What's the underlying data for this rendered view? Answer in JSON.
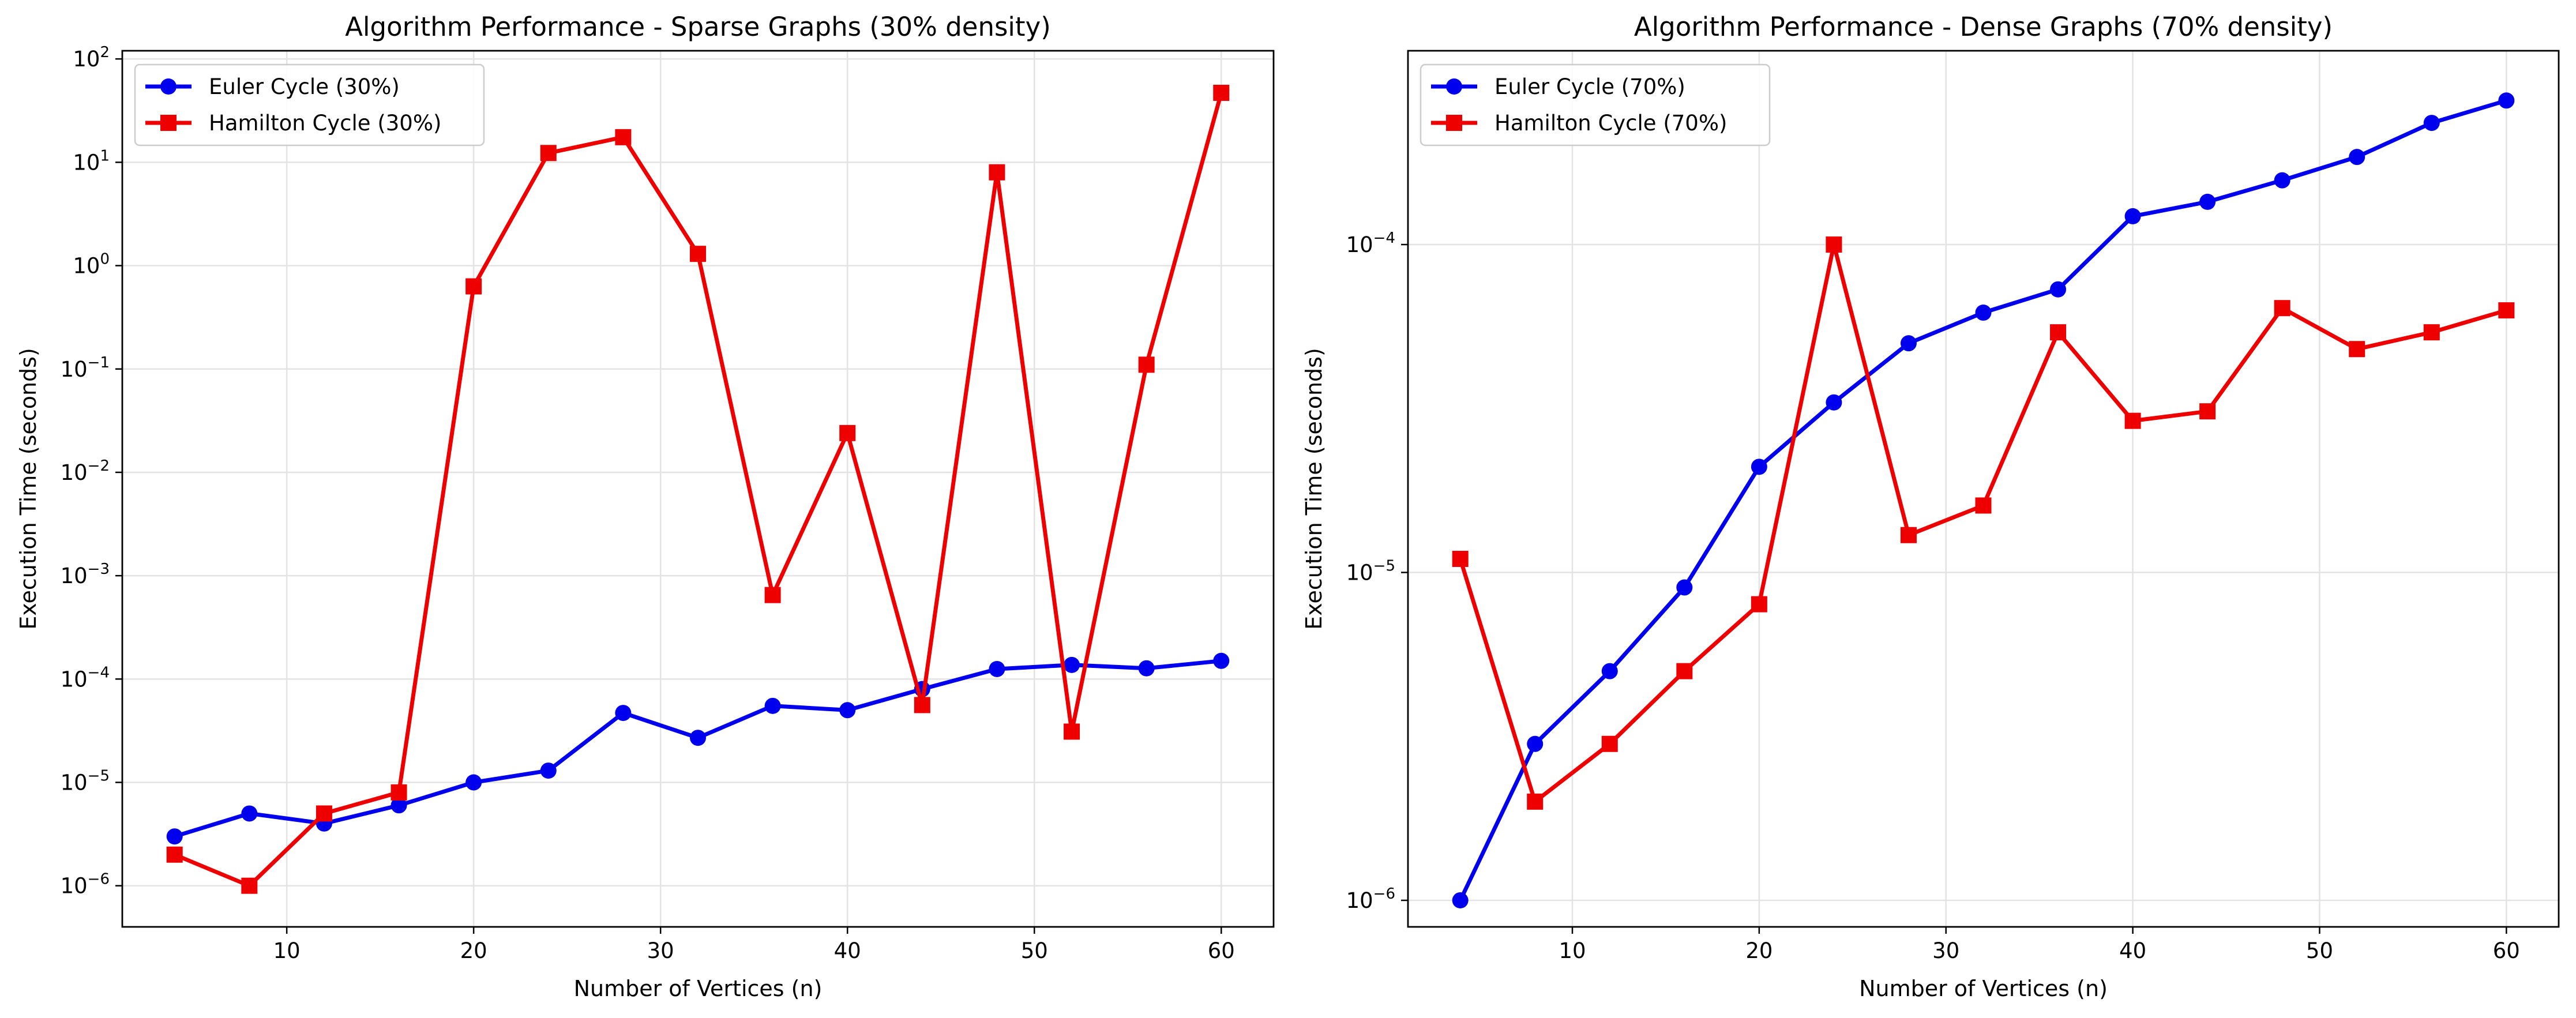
{
  "chart_data": [
    {
      "type": "line",
      "title": "Algorithm Performance - Sparse Graphs (30% density)",
      "xlabel": "Number of Vertices (n)",
      "ylabel": "Execution Time (seconds)",
      "xscale": "linear",
      "yscale": "log",
      "xlim": [
        1.2,
        62.8
      ],
      "ylim": [
        4e-07,
        120
      ],
      "xticks": [
        10,
        20,
        30,
        40,
        50,
        60
      ],
      "yticks": [
        {
          "value": 1e-06,
          "base": "10",
          "exp": "−6"
        },
        {
          "value": 1e-05,
          "base": "10",
          "exp": "−5"
        },
        {
          "value": 0.0001,
          "base": "10",
          "exp": "−4"
        },
        {
          "value": 0.001,
          "base": "10",
          "exp": "−3"
        },
        {
          "value": 0.01,
          "base": "10",
          "exp": "−2"
        },
        {
          "value": 0.1,
          "base": "10",
          "exp": "−1"
        },
        {
          "value": 1,
          "base": "10",
          "exp": "0"
        },
        {
          "value": 10,
          "base": "10",
          "exp": "1"
        },
        {
          "value": 100,
          "base": "10",
          "exp": "2"
        }
      ],
      "grid": true,
      "legend_position": "top-left",
      "x": [
        4,
        8,
        12,
        16,
        20,
        24,
        28,
        32,
        36,
        40,
        44,
        48,
        52,
        56,
        60
      ],
      "series": [
        {
          "name": "Euler Cycle (30%)",
          "color": "#0000ee",
          "marker": "circle",
          "values": [
            3e-06,
            5e-06,
            4e-06,
            6e-06,
            1e-05,
            1.3e-05,
            4.7e-05,
            2.7e-05,
            5.5e-05,
            5e-05,
            8e-05,
            0.000125,
            0.000137,
            0.000127,
            0.00015
          ]
        },
        {
          "name": "Hamilton Cycle (30%)",
          "color": "#ee0000",
          "marker": "square",
          "values": [
            2e-06,
            1e-06,
            5e-06,
            8e-06,
            0.63,
            12.3,
            17.5,
            1.3,
            0.00065,
            0.024,
            5.6e-05,
            8,
            3.1e-05,
            0.11,
            47
          ]
        }
      ]
    },
    {
      "type": "line",
      "title": "Algorithm Performance - Dense Graphs (70% density)",
      "xlabel": "Number of Vertices (n)",
      "ylabel": "Execution Time (seconds)",
      "xscale": "linear",
      "yscale": "log",
      "xlim": [
        1.2,
        62.8
      ],
      "ylim": [
        8.3e-07,
        0.00039
      ],
      "xticks": [
        10,
        20,
        30,
        40,
        50,
        60
      ],
      "yticks": [
        {
          "value": 1e-06,
          "base": "10",
          "exp": "−6"
        },
        {
          "value": 1e-05,
          "base": "10",
          "exp": "−5"
        },
        {
          "value": 0.0001,
          "base": "10",
          "exp": "−4"
        }
      ],
      "grid": true,
      "legend_position": "top-left",
      "x": [
        4,
        8,
        12,
        16,
        20,
        24,
        28,
        32,
        36,
        40,
        44,
        48,
        52,
        56,
        60
      ],
      "series": [
        {
          "name": "Euler Cycle (70%)",
          "color": "#0000ee",
          "marker": "circle",
          "values": [
            1e-06,
            3e-06,
            5e-06,
            9e-06,
            2.1e-05,
            3.3e-05,
            5e-05,
            6.2e-05,
            7.3e-05,
            0.000122,
            0.000135,
            0.000157,
            0.000185,
            0.000235,
            0.000275
          ]
        },
        {
          "name": "Hamilton Cycle (70%)",
          "color": "#ee0000",
          "marker": "square",
          "values": [
            1.1e-05,
            2e-06,
            3e-06,
            5e-06,
            8e-06,
            0.0001,
            1.3e-05,
            1.6e-05,
            5.4e-05,
            2.9e-05,
            3.1e-05,
            6.4e-05,
            4.8e-05,
            5.4e-05,
            6.3e-05
          ]
        }
      ]
    }
  ]
}
